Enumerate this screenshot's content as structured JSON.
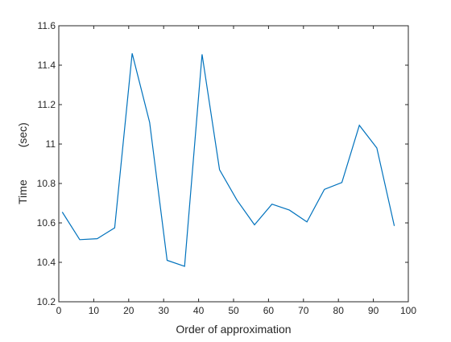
{
  "chart_data": {
    "type": "line",
    "title": "",
    "xlabel": "Order of approximation",
    "ylabel_parts": [
      "Time",
      "(sec)"
    ],
    "xlim": [
      0,
      100
    ],
    "ylim": [
      10.2,
      11.6
    ],
    "x_ticks": [
      0,
      10,
      20,
      30,
      40,
      50,
      60,
      70,
      80,
      90,
      100
    ],
    "y_ticks": [
      10.2,
      10.4,
      10.6,
      10.8,
      11,
      11.2,
      11.4,
      11.6
    ],
    "x_tick_labels": [
      "0",
      "10",
      "20",
      "30",
      "40",
      "50",
      "60",
      "70",
      "80",
      "90",
      "100"
    ],
    "y_tick_labels": [
      "10.2",
      "10.4",
      "10.6",
      "10.8",
      "11",
      "11.2",
      "11.4",
      "11.6"
    ],
    "grid": false,
    "line_color": "#0072BD",
    "axis_color": "#262626",
    "series": [
      {
        "x": [
          1,
          6,
          11,
          16,
          21,
          26,
          31,
          36,
          41,
          46,
          51,
          56,
          61,
          66,
          71,
          76,
          81,
          86,
          91,
          96
        ],
        "y": [
          10.655,
          10.515,
          10.52,
          10.575,
          11.46,
          11.11,
          10.41,
          10.38,
          11.455,
          10.87,
          10.715,
          10.59,
          10.695,
          10.665,
          10.605,
          10.77,
          10.805,
          11.095,
          10.98,
          10.585
        ]
      }
    ]
  }
}
